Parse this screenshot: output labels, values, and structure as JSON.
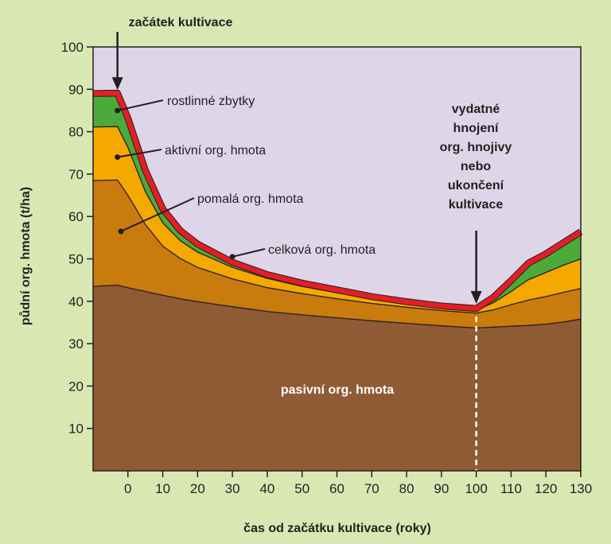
{
  "chart_data": {
    "type": "area",
    "stacked": true,
    "xlabel": "čas od začátku kultivace (roky)",
    "ylabel": "půdní org. hmota (t/ha)",
    "xlim": [
      -10,
      130
    ],
    "ylim": [
      0,
      100
    ],
    "xticks": [
      0,
      10,
      20,
      30,
      40,
      50,
      60,
      70,
      80,
      90,
      100,
      110,
      120,
      130
    ],
    "yticks": [
      10,
      20,
      30,
      40,
      50,
      60,
      70,
      80,
      90,
      100
    ],
    "x": [
      -10,
      -3,
      0,
      5,
      10,
      15,
      20,
      30,
      40,
      50,
      60,
      70,
      80,
      90,
      100,
      105,
      110,
      115,
      120,
      125,
      130
    ],
    "series": [
      {
        "name": "pasivní org. hmota",
        "color": "#8f5b34",
        "values": [
          43.5,
          43.8,
          43.2,
          42.3,
          41.4,
          40.6,
          39.9,
          38.7,
          37.6,
          36.8,
          36.1,
          35.4,
          34.8,
          34.2,
          33.7,
          33.9,
          34.1,
          34.3,
          34.6,
          35.1,
          35.8
        ]
      },
      {
        "name": "pomalá org. hmota",
        "color": "#c97b0e",
        "values": [
          25.0,
          24.8,
          21.8,
          15.8,
          11.6,
          9.5,
          8.1,
          6.6,
          5.6,
          5.0,
          4.5,
          4.1,
          3.8,
          3.6,
          3.5,
          4.1,
          5.1,
          6.0,
          6.5,
          7.0,
          7.2
        ]
      },
      {
        "name": "aktivní org. hmota",
        "color": "#f5a800",
        "values": [
          12.6,
          12.6,
          11.3,
          7.8,
          5.5,
          4.2,
          3.6,
          2.7,
          2.2,
          1.7,
          1.4,
          1.1,
          0.8,
          0.6,
          0.6,
          1.7,
          3.1,
          4.8,
          5.7,
          6.4,
          7.0
        ]
      },
      {
        "name": "rostlinné zbytky",
        "color": "#4caa3a",
        "values": [
          7.9,
          7.9,
          6.9,
          5.0,
          3.3,
          2.4,
          1.9,
          1.2,
          0.9,
          0.8,
          0.7,
          0.5,
          0.5,
          0.5,
          0.5,
          1.3,
          2.6,
          3.9,
          4.4,
          5.3,
          6.4
        ]
      }
    ],
    "total": {
      "name": "celková org. hmota",
      "color": "#e41e26"
    },
    "labels": {
      "top": "začátek kultivace",
      "plant": "rostlinné zbytky",
      "active": "aktivní org. hmota",
      "slow": "pomalá org. hmota",
      "total": "celková org. hmota",
      "passive": "pasivní org. hmota",
      "event": [
        "vydatné",
        "hnojení",
        "org. hnojivy",
        "nebo",
        "ukončení",
        "kultivace"
      ]
    },
    "grid": false,
    "plot_background": "#dfd5e9",
    "divider_x": 100
  }
}
